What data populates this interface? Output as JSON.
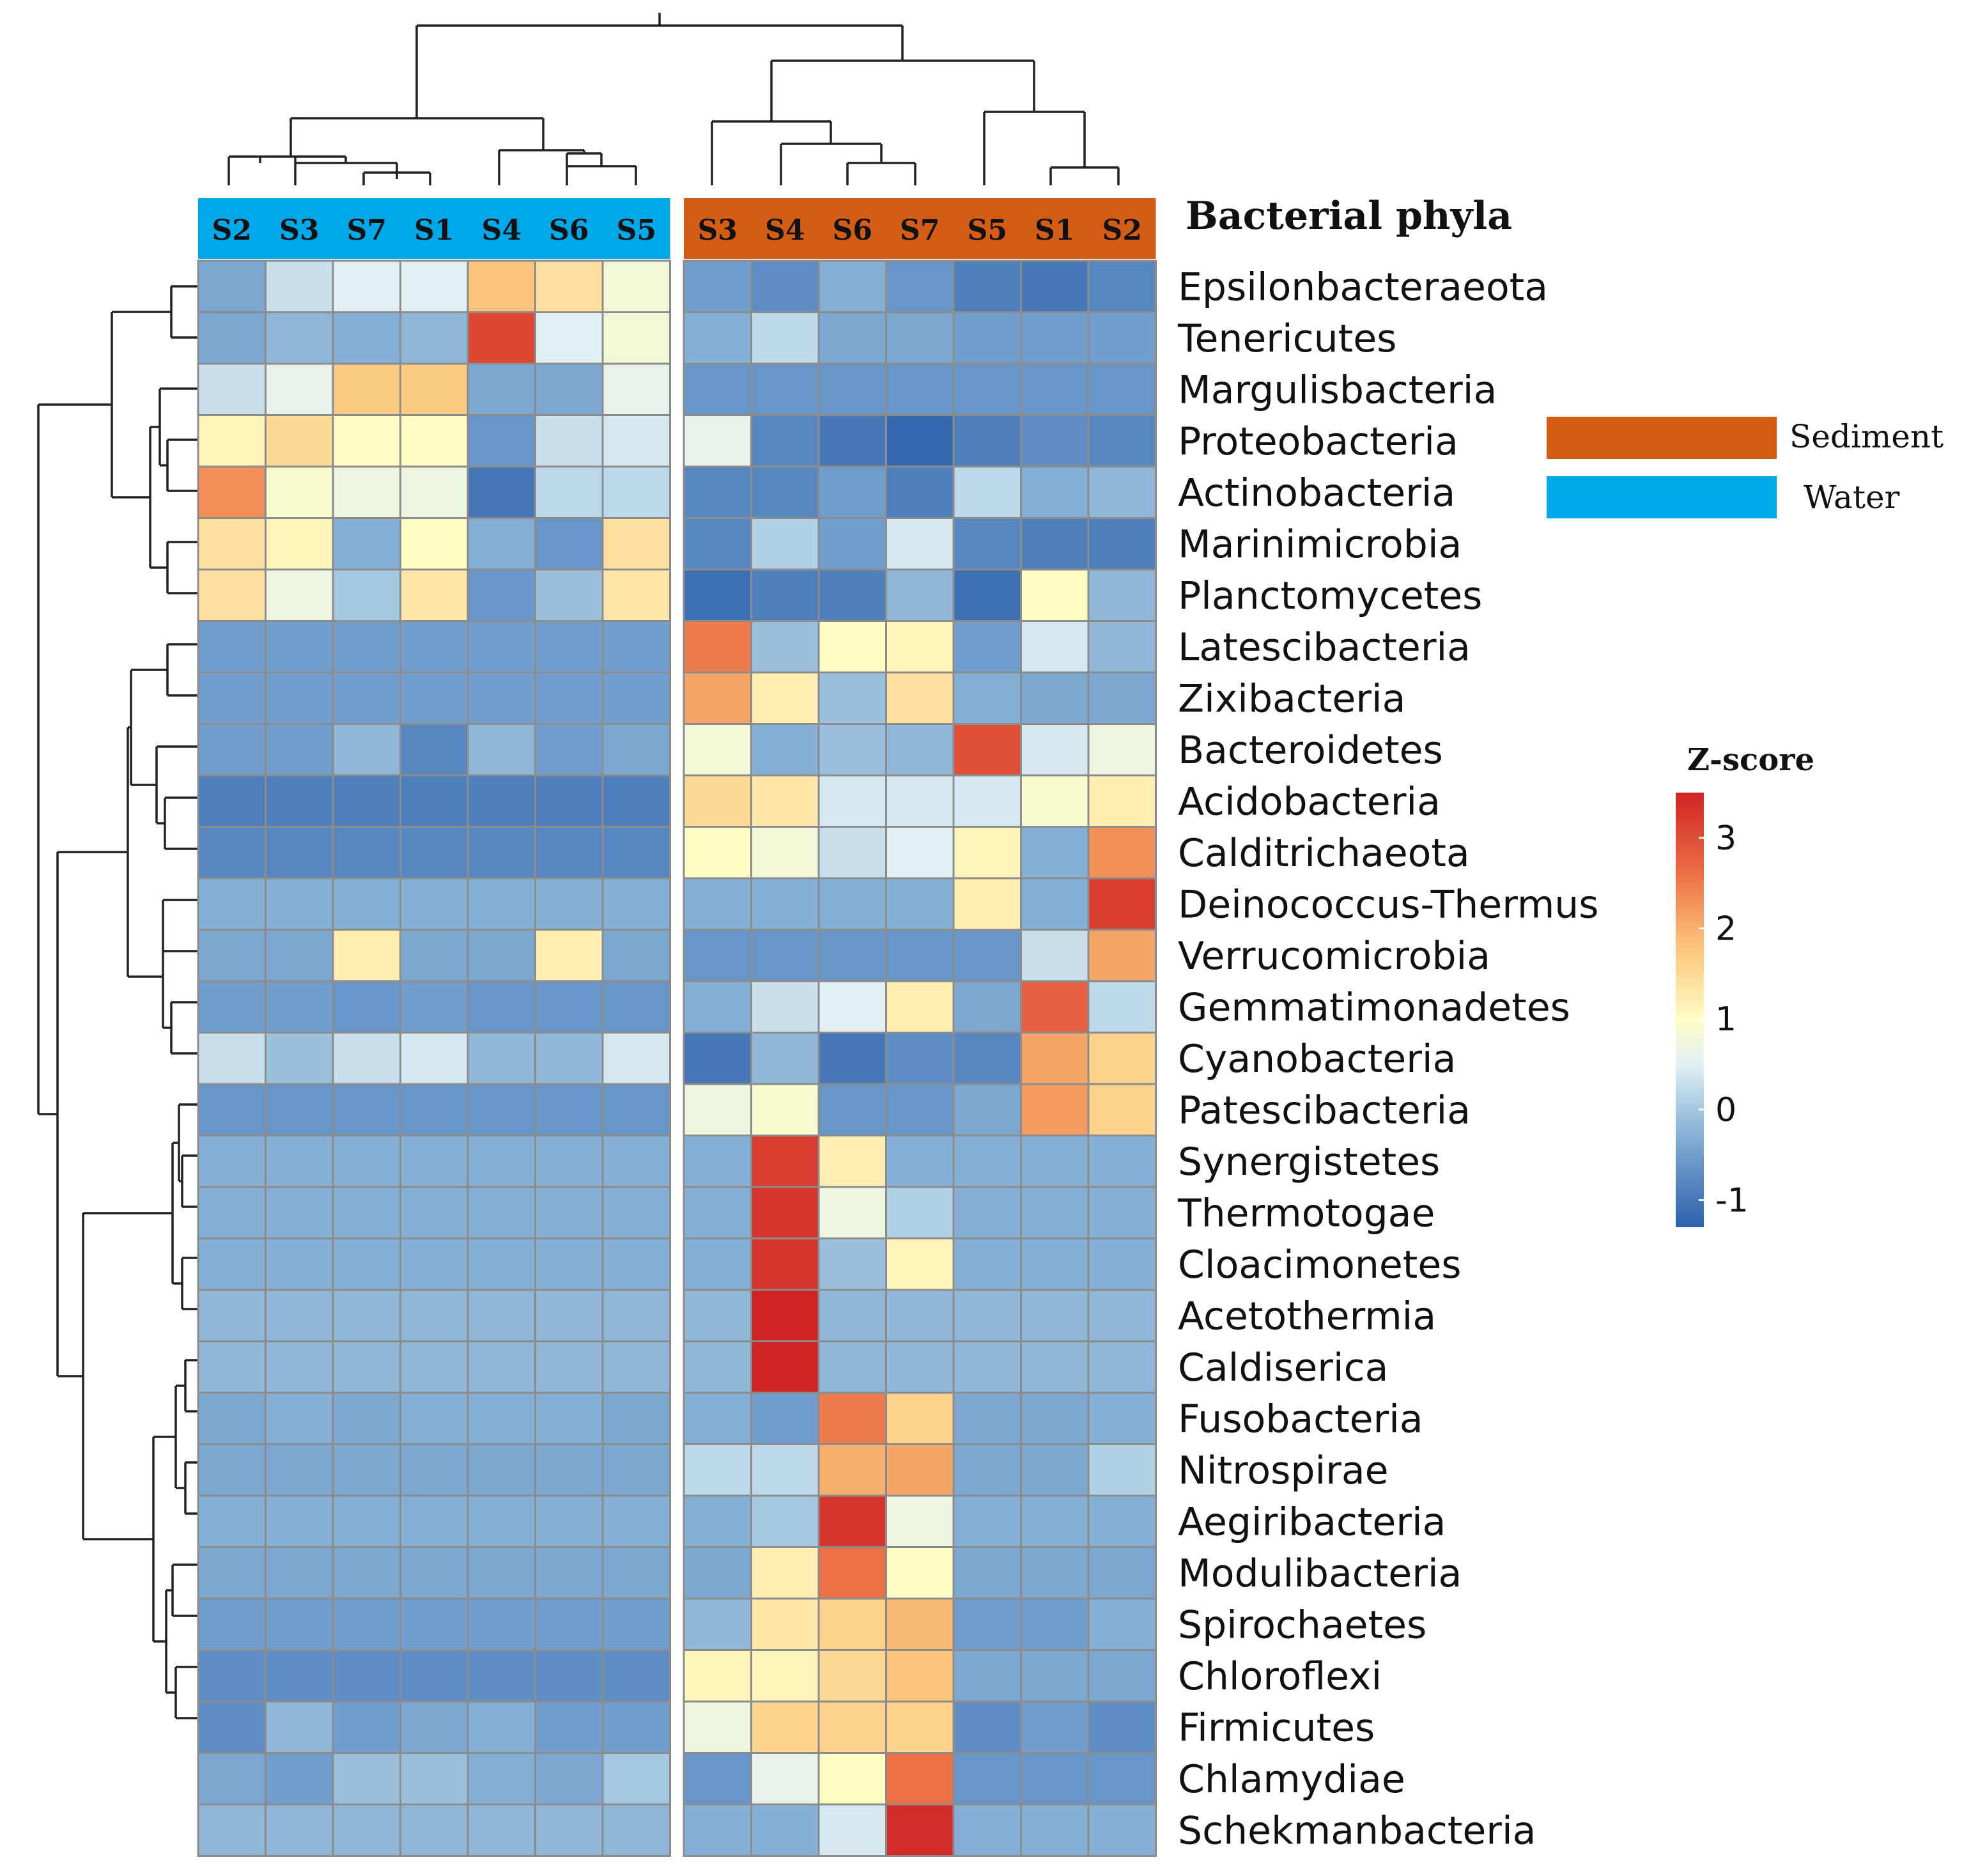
{
  "chart_data": {
    "type": "heatmap",
    "title": "Bacterial phyla",
    "value_label": "Z-score",
    "colorbar": {
      "min": -1.3,
      "max": 3.5,
      "ticks": [
        -1,
        0,
        1,
        2,
        3
      ]
    },
    "groups": [
      {
        "name": "Water",
        "color": "#00a8e8",
        "columns": [
          "S2",
          "S3",
          "S7",
          "S1",
          "S4",
          "S6",
          "S5"
        ]
      },
      {
        "name": "Sediment",
        "color": "#d35d14",
        "columns": [
          "S3",
          "S4",
          "S6",
          "S7",
          "S5",
          "S1",
          "S2"
        ]
      }
    ],
    "legend": [
      {
        "label": "Sediment",
        "color": "#d35d14"
      },
      {
        "label": "Water",
        "color": "#00a8e8"
      }
    ],
    "rows": [
      "Epsilonbacteraeota",
      "Tenericutes",
      "Margulisbacteria",
      "Proteobacteria",
      "Actinobacteria",
      "Marinimicrobia",
      "Planctomycetes",
      "Latescibacteria",
      "Zixibacteria",
      "Bacteroidetes",
      "Acidobacteria",
      "Calditrichaeota",
      "Deinococcus-Thermus",
      "Verrucomicrobia",
      "Gemmatimonadetes",
      "Cyanobacteria",
      "Patescibacteria",
      "Synergistetes",
      "Thermotogae",
      "Cloacimonetes",
      "Acetothermia",
      "Caldiserica",
      "Fusobacteria",
      "Nitrospirae",
      "Aegiribacteria",
      "Modulibacteria",
      "Spirochaetes",
      "Chloroflexi",
      "Firmicutes",
      "Chlamydiae",
      "Schekmanbacteria"
    ],
    "values": [
      [
        -0.4,
        0.3,
        0.5,
        0.5,
        1.8,
        1.4,
        0.8,
        -0.5,
        -0.7,
        -0.3,
        -0.6,
        -0.9,
        -1.0,
        -0.8
      ],
      [
        -0.4,
        -0.2,
        -0.3,
        -0.2,
        3.1,
        0.5,
        0.8,
        -0.3,
        0.2,
        -0.4,
        -0.4,
        -0.5,
        -0.5,
        -0.5
      ],
      [
        0.3,
        0.6,
        1.7,
        1.7,
        -0.4,
        -0.4,
        0.6,
        -0.6,
        -0.6,
        -0.6,
        -0.6,
        -0.6,
        -0.6,
        -0.6
      ],
      [
        1.1,
        1.5,
        1.0,
        1.0,
        -0.6,
        0.3,
        0.4,
        0.6,
        -0.8,
        -1.0,
        -1.2,
        -0.9,
        -0.7,
        -0.8
      ],
      [
        2.3,
        0.9,
        0.7,
        0.7,
        -1.0,
        0.2,
        0.2,
        -0.8,
        -0.8,
        -0.5,
        -0.9,
        0.2,
        -0.3,
        -0.2
      ],
      [
        1.4,
        1.1,
        -0.3,
        1.0,
        -0.3,
        -0.6,
        1.4,
        -0.8,
        0.1,
        -0.5,
        0.4,
        -0.8,
        -0.9,
        -0.9
      ],
      [
        1.4,
        0.7,
        0.0,
        1.3,
        -0.6,
        -0.1,
        1.3,
        -1.1,
        -0.9,
        -0.9,
        -0.2,
        -1.1,
        1.0,
        -0.2
      ],
      [
        -0.5,
        -0.5,
        -0.5,
        -0.5,
        -0.5,
        -0.5,
        -0.5,
        2.5,
        -0.1,
        1.0,
        1.1,
        -0.5,
        0.4,
        -0.2
      ],
      [
        -0.5,
        -0.5,
        -0.5,
        -0.5,
        -0.5,
        -0.5,
        -0.5,
        2.1,
        1.2,
        -0.1,
        1.4,
        -0.3,
        -0.4,
        -0.4
      ],
      [
        -0.5,
        -0.5,
        -0.2,
        -0.8,
        -0.2,
        -0.5,
        -0.4,
        0.8,
        -0.3,
        -0.1,
        -0.2,
        3.0,
        0.4,
        0.7
      ],
      [
        -0.9,
        -0.9,
        -0.9,
        -0.9,
        -0.9,
        -0.9,
        -0.9,
        1.5,
        1.3,
        0.4,
        0.4,
        0.4,
        0.9,
        1.2
      ],
      [
        -0.8,
        -0.8,
        -0.8,
        -0.8,
        -0.8,
        -0.8,
        -0.8,
        1.0,
        0.8,
        0.3,
        0.5,
        1.1,
        -0.3,
        2.3
      ],
      [
        -0.3,
        -0.3,
        -0.3,
        -0.3,
        -0.3,
        -0.3,
        -0.3,
        -0.3,
        -0.3,
        -0.3,
        -0.3,
        1.2,
        -0.3,
        3.2
      ],
      [
        -0.4,
        -0.4,
        1.2,
        -0.4,
        -0.4,
        1.2,
        -0.4,
        -0.6,
        -0.6,
        -0.6,
        -0.6,
        -0.6,
        0.3,
        2.1
      ],
      [
        -0.5,
        -0.5,
        -0.6,
        -0.5,
        -0.6,
        -0.6,
        -0.6,
        -0.3,
        0.3,
        0.5,
        1.2,
        -0.4,
        2.8,
        0.2
      ],
      [
        0.3,
        -0.1,
        0.3,
        0.4,
        -0.2,
        -0.2,
        0.4,
        -1.0,
        -0.2,
        -1.0,
        -0.7,
        -0.8,
        2.1,
        1.6
      ],
      [
        -0.6,
        -0.6,
        -0.6,
        -0.6,
        -0.6,
        -0.6,
        -0.6,
        0.7,
        0.9,
        -0.6,
        -0.6,
        -0.4,
        2.2,
        1.6
      ],
      [
        -0.3,
        -0.3,
        -0.3,
        -0.3,
        -0.3,
        -0.3,
        -0.3,
        -0.3,
        3.2,
        1.2,
        -0.3,
        -0.3,
        -0.3,
        -0.3
      ],
      [
        -0.3,
        -0.3,
        -0.3,
        -0.3,
        -0.3,
        -0.3,
        -0.3,
        -0.3,
        3.3,
        0.7,
        0.1,
        -0.3,
        -0.3,
        -0.3
      ],
      [
        -0.3,
        -0.3,
        -0.3,
        -0.3,
        -0.3,
        -0.3,
        -0.3,
        -0.3,
        3.3,
        -0.1,
        1.1,
        -0.3,
        -0.3,
        -0.3
      ],
      [
        -0.2,
        -0.2,
        -0.2,
        -0.2,
        -0.2,
        -0.2,
        -0.2,
        -0.2,
        3.5,
        -0.2,
        -0.2,
        -0.2,
        -0.2,
        -0.2
      ],
      [
        -0.2,
        -0.2,
        -0.2,
        -0.2,
        -0.2,
        -0.2,
        -0.2,
        -0.2,
        3.5,
        -0.2,
        -0.2,
        -0.2,
        -0.2,
        -0.2
      ],
      [
        -0.4,
        -0.3,
        -0.4,
        -0.3,
        -0.3,
        -0.3,
        -0.4,
        -0.3,
        -0.5,
        2.5,
        1.6,
        -0.4,
        -0.4,
        -0.3
      ],
      [
        -0.4,
        -0.4,
        -0.4,
        -0.4,
        -0.4,
        -0.4,
        -0.4,
        0.2,
        0.2,
        2.0,
        2.1,
        -0.4,
        -0.4,
        0.1
      ],
      [
        -0.3,
        -0.3,
        -0.3,
        -0.3,
        -0.3,
        -0.3,
        -0.3,
        -0.3,
        0.0,
        3.3,
        0.7,
        -0.3,
        -0.3,
        -0.3
      ],
      [
        -0.4,
        -0.4,
        -0.4,
        -0.4,
        -0.4,
        -0.4,
        -0.4,
        -0.4,
        1.2,
        2.6,
        1.0,
        -0.4,
        -0.4,
        -0.4
      ],
      [
        -0.5,
        -0.5,
        -0.5,
        -0.5,
        -0.5,
        -0.5,
        -0.5,
        -0.2,
        1.3,
        1.6,
        1.9,
        -0.5,
        -0.5,
        -0.3
      ],
      [
        -0.7,
        -0.7,
        -0.7,
        -0.7,
        -0.7,
        -0.7,
        -0.7,
        1.1,
        1.1,
        1.5,
        1.8,
        -0.4,
        -0.4,
        -0.4
      ],
      [
        -0.7,
        -0.2,
        -0.5,
        -0.4,
        -0.3,
        -0.5,
        -0.5,
        0.7,
        1.6,
        1.6,
        1.6,
        -0.7,
        -0.5,
        -0.7
      ],
      [
        -0.4,
        -0.5,
        -0.1,
        -0.1,
        -0.3,
        -0.4,
        0.0,
        -0.6,
        0.6,
        1.0,
        2.6,
        -0.6,
        -0.6,
        -0.6
      ],
      [
        -0.2,
        -0.2,
        -0.2,
        -0.2,
        -0.2,
        -0.2,
        -0.2,
        -0.3,
        -0.3,
        0.4,
        3.4,
        -0.3,
        -0.3,
        -0.3
      ]
    ]
  }
}
